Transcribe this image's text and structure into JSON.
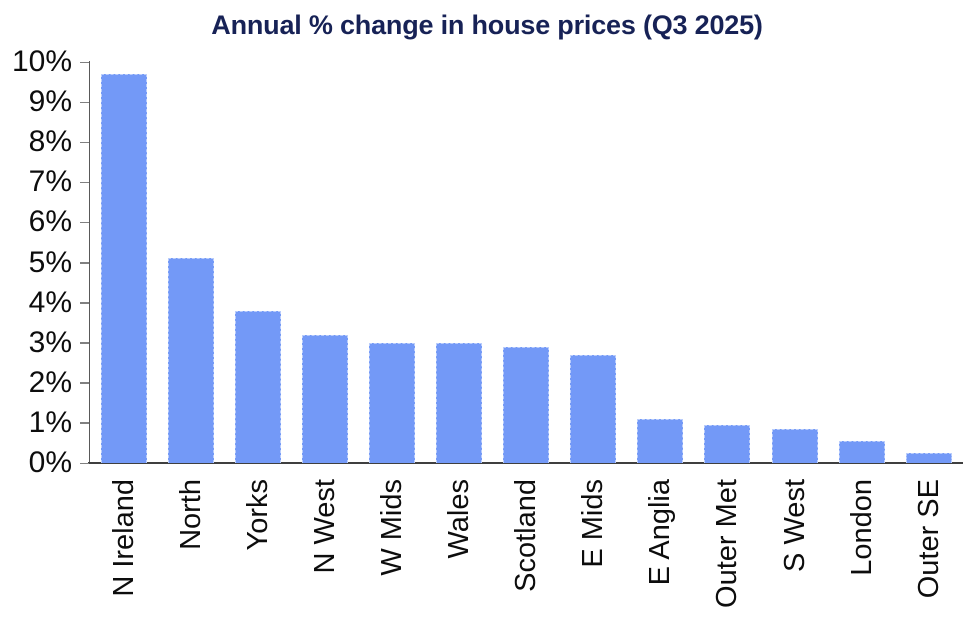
{
  "chart_data": {
    "type": "bar",
    "title": "Annual % change in house prices (Q3 2025)",
    "categories": [
      "N Ireland",
      "North",
      "Yorks",
      "N West",
      "W Mids",
      "Wales",
      "Scotland",
      "E Mids",
      "E Anglia",
      "Outer Met",
      "S West",
      "London",
      "Outer SE"
    ],
    "values": [
      9.7,
      5.1,
      3.8,
      3.2,
      3.0,
      3.0,
      2.9,
      2.7,
      1.1,
      0.95,
      0.85,
      0.55,
      0.25
    ],
    "y_tick_labels": [
      "0%",
      "1%",
      "2%",
      "3%",
      "4%",
      "5%",
      "6%",
      "7%",
      "8%",
      "9%",
      "10%"
    ],
    "ylim": [
      0,
      10
    ],
    "xlabel": "",
    "ylabel": "",
    "grid": false,
    "legend": false,
    "colors": {
      "bar_fill": "#7399F7",
      "bar_edge": "#BACDFB",
      "title": "#172256",
      "axis_line": "#3F3F3F",
      "tick_mark": "#808080",
      "tick_label": "#0D0D0D"
    }
  }
}
